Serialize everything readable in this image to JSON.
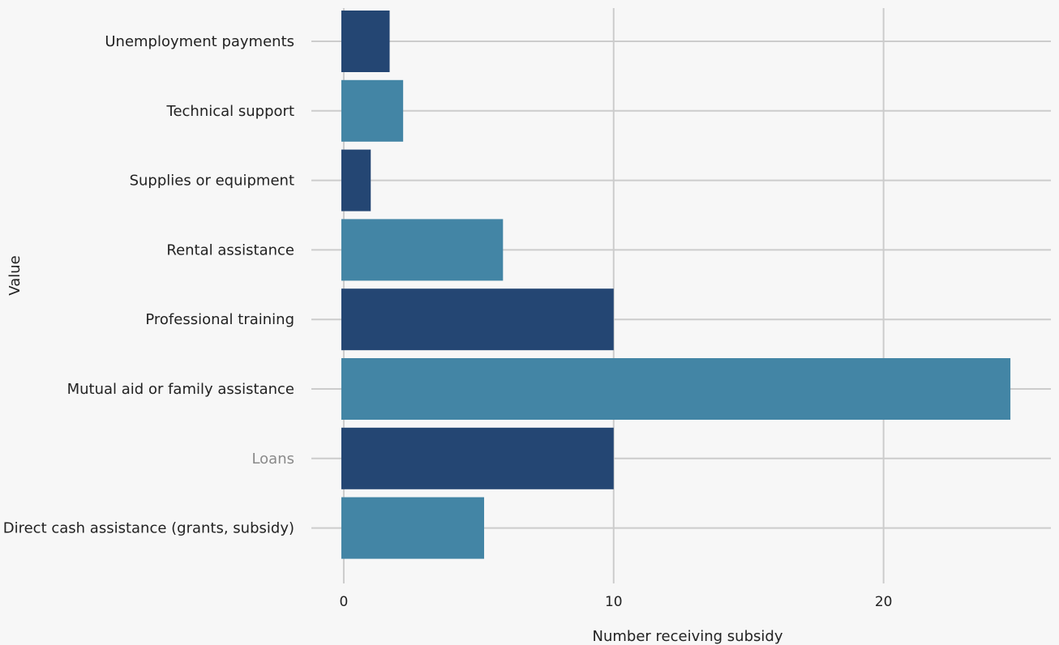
{
  "chart_data": {
    "type": "bar",
    "orientation": "horizontal",
    "categories": [
      "Unemployment payments",
      "Technical support",
      "Supplies or equipment",
      "Rental assistance",
      "Professional training",
      "Mutual aid or family assistance",
      "Loans",
      "Direct cash assistance (grants, subsidy)"
    ],
    "values": [
      1.7,
      2.2,
      1.0,
      5.9,
      10,
      24.7,
      10,
      5.2
    ],
    "bar_colors": [
      "#244673",
      "#4385a5",
      "#244673",
      "#4385a5",
      "#244673",
      "#4385a5",
      "#244673",
      "#4385a5"
    ],
    "muted_categories": [
      "Loans"
    ],
    "title": "",
    "xlabel": "Number receiving subsidy",
    "ylabel": "Value",
    "xlim": [
      -1.2,
      26.2
    ],
    "xticks": [
      0,
      10,
      20
    ],
    "x_tick_labels": [
      "0",
      "10",
      "20"
    ],
    "grid": true,
    "legend": "none",
    "background_color": "#f7f7f7",
    "grid_color": "#cccccc"
  }
}
